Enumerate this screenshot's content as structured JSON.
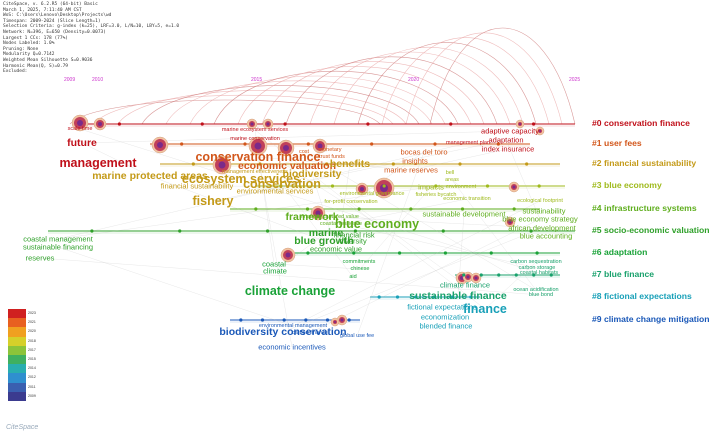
{
  "info_lines": [
    "CiteSpace, v. 6.2.R5 (64-bit) Basic",
    "March 1, 2025, 7:11:40 AM CST",
    "WoS: C:\\Users\\Lenovo\\Desktop\\Projects\\wd",
    "Timespan: 2009-2024 (Slice Length=1)",
    "Selection Criteria: g-index (k=25), LRF=3.0, L/N=10, LBY=5, e=1.0",
    "Network: N=396, E=650 (Density=0.0073)",
    "Largest 1 CCs: 178 (77%)",
    "Nodes Labeled: 1.0%",
    "Pruning: None",
    "Modularity Q=0.7142",
    "Weighted Mean Silhouette S=0.9036",
    "Harmonic Mean(Q, S)=0.79",
    "Excluded:"
  ],
  "timeline_years": [
    "2009",
    "2010",
    "2015",
    "2020",
    "2025"
  ],
  "clusters": [
    {
      "label": "#0 conservation finance",
      "color": "#c0101a"
    },
    {
      "label": "#1 user fees",
      "color": "#d2561a"
    },
    {
      "label": "#2 financial sustainability",
      "color": "#c49a18"
    },
    {
      "label": "#3 blue economy",
      "color": "#9fba1c"
    },
    {
      "label": "#4 infrastructure systems",
      "color": "#5fae1e"
    },
    {
      "label": "#5 socio-economic valuation",
      "color": "#2fa02a"
    },
    {
      "label": "#6 adaptation",
      "color": "#1aa238"
    },
    {
      "label": "#7 blue finance",
      "color": "#19a16c"
    },
    {
      "label": "#8 fictional expectations",
      "color": "#18a0b8"
    },
    {
      "label": "#9 climate change mitigation",
      "color": "#1a58b8"
    }
  ],
  "keywords": [
    {
      "t": "future",
      "c": 0,
      "s": 2
    },
    {
      "t": "management",
      "c": 0,
      "s": 3
    },
    {
      "t": "scale time",
      "c": 0,
      "s": 0
    },
    {
      "t": "marine ecosystem services",
      "c": 0,
      "s": 0
    },
    {
      "t": "marine conservation",
      "c": 0,
      "s": 0
    },
    {
      "t": "adaptive capacity",
      "c": 0,
      "s": 1
    },
    {
      "t": "adaptation",
      "c": 0,
      "s": 1
    },
    {
      "t": "index insurance",
      "c": 0,
      "s": 1
    },
    {
      "t": "management plan",
      "c": 0,
      "s": 0
    },
    {
      "t": "conservation finance",
      "c": 1,
      "s": 3
    },
    {
      "t": "cost",
      "c": 1,
      "s": 0
    },
    {
      "t": "monetary",
      "c": 1,
      "s": 0
    },
    {
      "t": "trust funds",
      "c": 1,
      "s": 0
    },
    {
      "t": "economic valuation",
      "c": 1,
      "s": 2
    },
    {
      "t": "bocas del toro",
      "c": 1,
      "s": 1
    },
    {
      "t": "insights",
      "c": 1,
      "s": 1
    },
    {
      "t": "marine reserves",
      "c": 1,
      "s": 1
    },
    {
      "t": "marine protected areas",
      "c": 2,
      "s": 2
    },
    {
      "t": "ecosystem services",
      "c": 2,
      "s": 3
    },
    {
      "t": "conservation",
      "c": 2,
      "s": 3
    },
    {
      "t": "biodiversity",
      "c": 2,
      "s": 2
    },
    {
      "t": "benefits",
      "c": 2,
      "s": 2
    },
    {
      "t": "financial sustainability",
      "c": 2,
      "s": 1
    },
    {
      "t": "environmental services",
      "c": 2,
      "s": 1
    },
    {
      "t": "management effectiveness",
      "c": 2,
      "s": 0
    },
    {
      "t": "fishery",
      "c": 2,
      "s": 3
    },
    {
      "t": "environmental governance",
      "c": 3,
      "s": 0
    },
    {
      "t": "for-profit conservation",
      "c": 3,
      "s": 0
    },
    {
      "t": "impacts",
      "c": 3,
      "s": 1
    },
    {
      "t": "bell",
      "c": 3,
      "s": 0
    },
    {
      "t": "areas",
      "c": 3,
      "s": 0
    },
    {
      "t": "environment",
      "c": 3,
      "s": 0
    },
    {
      "t": "fisheries bycatch",
      "c": 3,
      "s": 0
    },
    {
      "t": "economic transition",
      "c": 3,
      "s": 0
    },
    {
      "t": "ecological footprint",
      "c": 3,
      "s": 0
    },
    {
      "t": "framework",
      "c": 4,
      "s": 2
    },
    {
      "t": "blue economy",
      "c": 4,
      "s": 3
    },
    {
      "t": "financial captured value",
      "c": 4,
      "s": 0
    },
    {
      "t": "coastal resilience",
      "c": 4,
      "s": 0
    },
    {
      "t": "sustainable development",
      "c": 4,
      "s": 1
    },
    {
      "t": "sustainability",
      "c": 4,
      "s": 1
    },
    {
      "t": "blue economy strategy",
      "c": 4,
      "s": 1
    },
    {
      "t": "african development",
      "c": 4,
      "s": 1
    },
    {
      "t": "blue accounting",
      "c": 4,
      "s": 1
    },
    {
      "t": "marine",
      "c": 5,
      "s": 2
    },
    {
      "t": "financial risk",
      "c": 5,
      "s": 1
    },
    {
      "t": "diversity",
      "c": 5,
      "s": 1
    },
    {
      "t": "economic value",
      "c": 5,
      "s": 1
    },
    {
      "t": "blue growth",
      "c": 5,
      "s": 2
    },
    {
      "t": "coastal management",
      "c": 5,
      "s": 1
    },
    {
      "t": "sustainable financing",
      "c": 5,
      "s": 1
    },
    {
      "t": "reserves",
      "c": 5,
      "s": 1
    },
    {
      "t": "coastal",
      "c": 6,
      "s": 1
    },
    {
      "t": "climate",
      "c": 6,
      "s": 1
    },
    {
      "t": "commitments",
      "c": 6,
      "s": 0
    },
    {
      "t": "chinese",
      "c": 6,
      "s": 0
    },
    {
      "t": "aid",
      "c": 6,
      "s": 0
    },
    {
      "t": "climate change",
      "c": 6,
      "s": 3
    },
    {
      "t": "climate finance",
      "c": 7,
      "s": 1
    },
    {
      "t": "carbon sequestration",
      "c": 7,
      "s": 0
    },
    {
      "t": "carbon storage",
      "c": 7,
      "s": 0
    },
    {
      "t": "coastal habitats",
      "c": 7,
      "s": 0
    },
    {
      "t": "sustainable finance",
      "c": 7,
      "s": 2
    },
    {
      "t": "ocean acidification",
      "c": 7,
      "s": 0
    },
    {
      "t": "blue bond",
      "c": 7,
      "s": 0
    },
    {
      "t": "fictional expectations",
      "c": 8,
      "s": 1
    },
    {
      "t": "finance",
      "c": 8,
      "s": 3
    },
    {
      "t": "economization",
      "c": 8,
      "s": 1
    },
    {
      "t": "blended finance",
      "c": 8,
      "s": 1
    },
    {
      "t": "environmental management",
      "c": 9,
      "s": 0
    },
    {
      "t": "carbon finance",
      "c": 9,
      "s": 0
    },
    {
      "t": "biodiversity conservation",
      "c": 9,
      "s": 2
    },
    {
      "t": "economic incentives",
      "c": 9,
      "s": 1
    },
    {
      "t": "global use fee",
      "c": 9,
      "s": 0
    }
  ],
  "legend_colors": [
    "#3b3b8f",
    "#3a5fb0",
    "#2f8fcf",
    "#29aeb0",
    "#3fb060",
    "#8cc43a",
    "#d6d02a",
    "#f0a020",
    "#e86020",
    "#d02020"
  ],
  "legend_years": [
    "2009",
    "2011",
    "2012",
    "2014",
    "2015",
    "2017",
    "2018",
    "2020",
    "2021",
    "2023"
  ],
  "logo_text": "CiteSpace"
}
